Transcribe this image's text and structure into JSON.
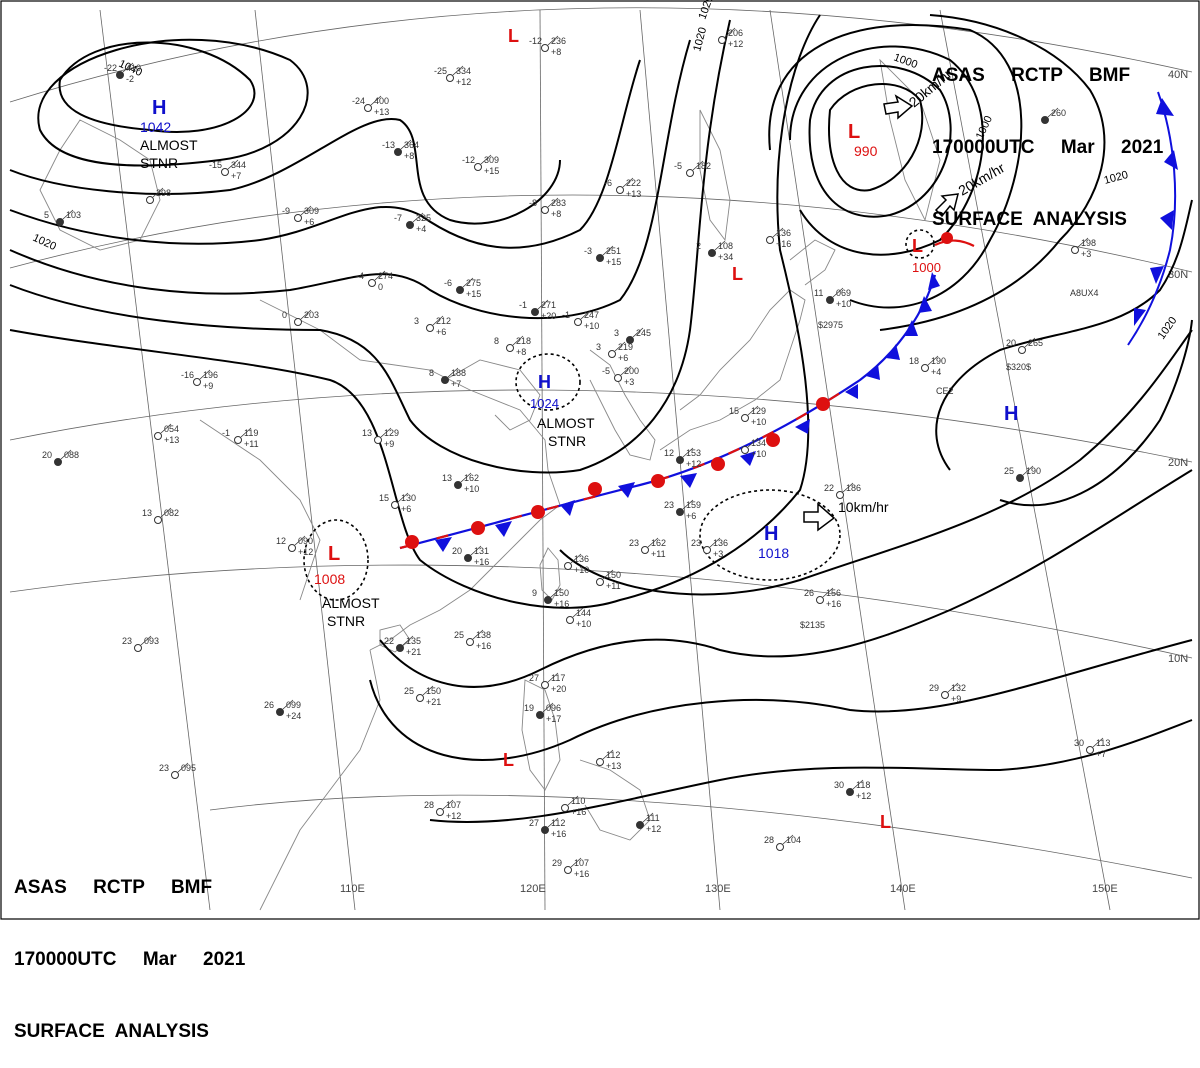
{
  "header": {
    "line1": "ASAS     RCTP     BMF",
    "line2": "170000UTC     Mar     2021",
    "line3": "SURFACE  ANALYSIS"
  },
  "colors": {
    "isobar": "#000000",
    "high": "#1010cc",
    "low": "#dd1010",
    "cold_front": "#1010dd",
    "warm_front": "#dd1010",
    "grid": "#555555",
    "coast": "#777777"
  },
  "lon_labels": [
    "110E",
    "120E",
    "130E",
    "140E",
    "150E"
  ],
  "lat_labels": [
    "40N",
    "30N",
    "20N",
    "10N"
  ],
  "isobar_labels": [
    "1040",
    "1020",
    "1020",
    "1020",
    "1000",
    "1000",
    "1020",
    "1020"
  ],
  "systems": [
    {
      "type": "H",
      "value": "1042",
      "note": "ALMOST\nSTNR"
    },
    {
      "type": "L",
      "value": "990"
    },
    {
      "type": "L",
      "value": "1000"
    },
    {
      "type": "H",
      "value": "1024",
      "note": "ALMOST\nSTNR"
    },
    {
      "type": "L",
      "value": "1008",
      "note": "ALMOST\nSTNR"
    },
    {
      "type": "H",
      "value": "1018"
    },
    {
      "type": "H",
      "value": ""
    },
    {
      "type": "L",
      "value": ""
    },
    {
      "type": "L",
      "value": ""
    },
    {
      "type": "L",
      "value": ""
    },
    {
      "type": "L",
      "value": ""
    }
  ],
  "motions": [
    "20km/hr",
    "20km/hr",
    "10km/hr"
  ],
  "stations": [
    {
      "t": "-22",
      "p": "410",
      "tend": "-2"
    },
    {
      "t": "-15",
      "p": "344",
      "tend": "+7"
    },
    {
      "t": "",
      "p": "298",
      "tend": ""
    },
    {
      "t": "5",
      "p": "103",
      "tend": ""
    },
    {
      "t": "-25",
      "p": "334",
      "tend": "+12"
    },
    {
      "t": "-24",
      "p": "400",
      "tend": "+13"
    },
    {
      "t": "-13",
      "p": "364",
      "tend": "+8"
    },
    {
      "t": "-12",
      "p": "309",
      "tend": "+15"
    },
    {
      "t": "-9",
      "p": "309",
      "tend": "+6"
    },
    {
      "t": "-7",
      "p": "325",
      "tend": "+4"
    },
    {
      "t": "-8",
      "p": "283",
      "tend": "+8"
    },
    {
      "t": "-4",
      "p": "274",
      "tend": "0"
    },
    {
      "t": "-6",
      "p": "275",
      "tend": "+15"
    },
    {
      "t": "0",
      "p": "203",
      "tend": ""
    },
    {
      "t": "3",
      "p": "212",
      "tend": "+6"
    },
    {
      "t": "-1",
      "p": "271",
      "tend": "+20"
    },
    {
      "t": "8",
      "p": "218",
      "tend": "+8"
    },
    {
      "t": "-1",
      "p": "247",
      "tend": "+10"
    },
    {
      "t": "-3",
      "p": "251",
      "tend": "+15"
    },
    {
      "t": "-6",
      "p": "222",
      "tend": "+13"
    },
    {
      "t": "-5",
      "p": "182",
      "tend": ""
    },
    {
      "t": "2",
      "p": "108",
      "tend": "+34"
    },
    {
      "t": "-12",
      "p": "236",
      "tend": "+8"
    },
    {
      "t": "3",
      "p": "219",
      "tend": "+6"
    },
    {
      "t": "3",
      "p": "245",
      "tend": ""
    },
    {
      "t": "-5",
      "p": "200",
      "tend": "+3"
    },
    {
      "t": "-16",
      "p": "196",
      "tend": "+9"
    },
    {
      "t": "8",
      "p": "188",
      "tend": "+7"
    },
    {
      "t": "-1",
      "p": "119",
      "tend": "+11"
    },
    {
      "t": "13",
      "p": "129",
      "tend": "+9"
    },
    {
      "t": "20",
      "p": "088",
      "tend": ""
    },
    {
      "t": "13",
      "p": "082",
      "tend": ""
    },
    {
      "t": "",
      "p": "054",
      "tend": "+13"
    },
    {
      "t": "13",
      "p": "162",
      "tend": "+10"
    },
    {
      "t": "15",
      "p": "130",
      "tend": "+6"
    },
    {
      "t": "12",
      "p": "090",
      "tend": "+12"
    },
    {
      "t": "20",
      "p": "131",
      "tend": "+16"
    },
    {
      "t": "",
      "p": "136",
      "tend": "+10"
    },
    {
      "t": "",
      "p": "150",
      "tend": "+11"
    },
    {
      "t": "23",
      "p": "159",
      "tend": "+6"
    },
    {
      "t": "23",
      "p": "162",
      "tend": "+11"
    },
    {
      "t": "23",
      "p": "136",
      "tend": "+3"
    },
    {
      "t": "12",
      "p": "153",
      "tend": "+12"
    },
    {
      "t": "15",
      "p": "129",
      "tend": "+10"
    },
    {
      "t": "",
      "p": "134",
      "tend": "+10"
    },
    {
      "t": "11",
      "p": "069",
      "tend": "+10"
    },
    {
      "t": "",
      "p": "136",
      "tend": "+16"
    },
    {
      "t": "",
      "p": "198",
      "tend": "+3"
    },
    {
      "t": "",
      "p": "260",
      "tend": ""
    },
    {
      "t": "18",
      "p": "190",
      "tend": "+4"
    },
    {
      "t": "20",
      "p": "265",
      "tend": ""
    },
    {
      "t": "25",
      "p": "190",
      "tend": ""
    },
    {
      "t": "22",
      "p": "186",
      "tend": ""
    },
    {
      "t": "26",
      "p": "156",
      "tend": "+16"
    },
    {
      "t": "9",
      "p": "150",
      "tend": "+16"
    },
    {
      "t": "",
      "p": "144",
      "tend": "+10"
    },
    {
      "t": "25",
      "p": "138",
      "tend": "+16"
    },
    {
      "t": "22",
      "p": "135",
      "tend": "+21"
    },
    {
      "t": "25",
      "p": "150",
      "tend": "+21"
    },
    {
      "t": "23",
      "p": "093",
      "tend": ""
    },
    {
      "t": "26",
      "p": "099",
      "tend": "+24"
    },
    {
      "t": "23",
      "p": "095",
      "tend": ""
    },
    {
      "t": "27",
      "p": "117",
      "tend": "+20"
    },
    {
      "t": "19",
      "p": "096",
      "tend": "+17"
    },
    {
      "t": "",
      "p": "112",
      "tend": "+13"
    },
    {
      "t": "28",
      "p": "107",
      "tend": "+12"
    },
    {
      "t": "27",
      "p": "112",
      "tend": "+16"
    },
    {
      "t": "",
      "p": "110",
      "tend": "+16"
    },
    {
      "t": "29",
      "p": "107",
      "tend": "+16"
    },
    {
      "t": "",
      "p": "111",
      "tend": "+12"
    },
    {
      "t": "29",
      "p": "132",
      "tend": "+9"
    },
    {
      "t": "30",
      "p": "113",
      "tend": "+7"
    },
    {
      "t": "30",
      "p": "118",
      "tend": "+12"
    },
    {
      "t": "28",
      "p": "104",
      "tend": ""
    },
    {
      "t": "",
      "p": "206",
      "tend": "+12"
    }
  ],
  "ship_codes": [
    "$2975",
    "$320$",
    "$2135",
    "A8UX4",
    "CE2"
  ]
}
